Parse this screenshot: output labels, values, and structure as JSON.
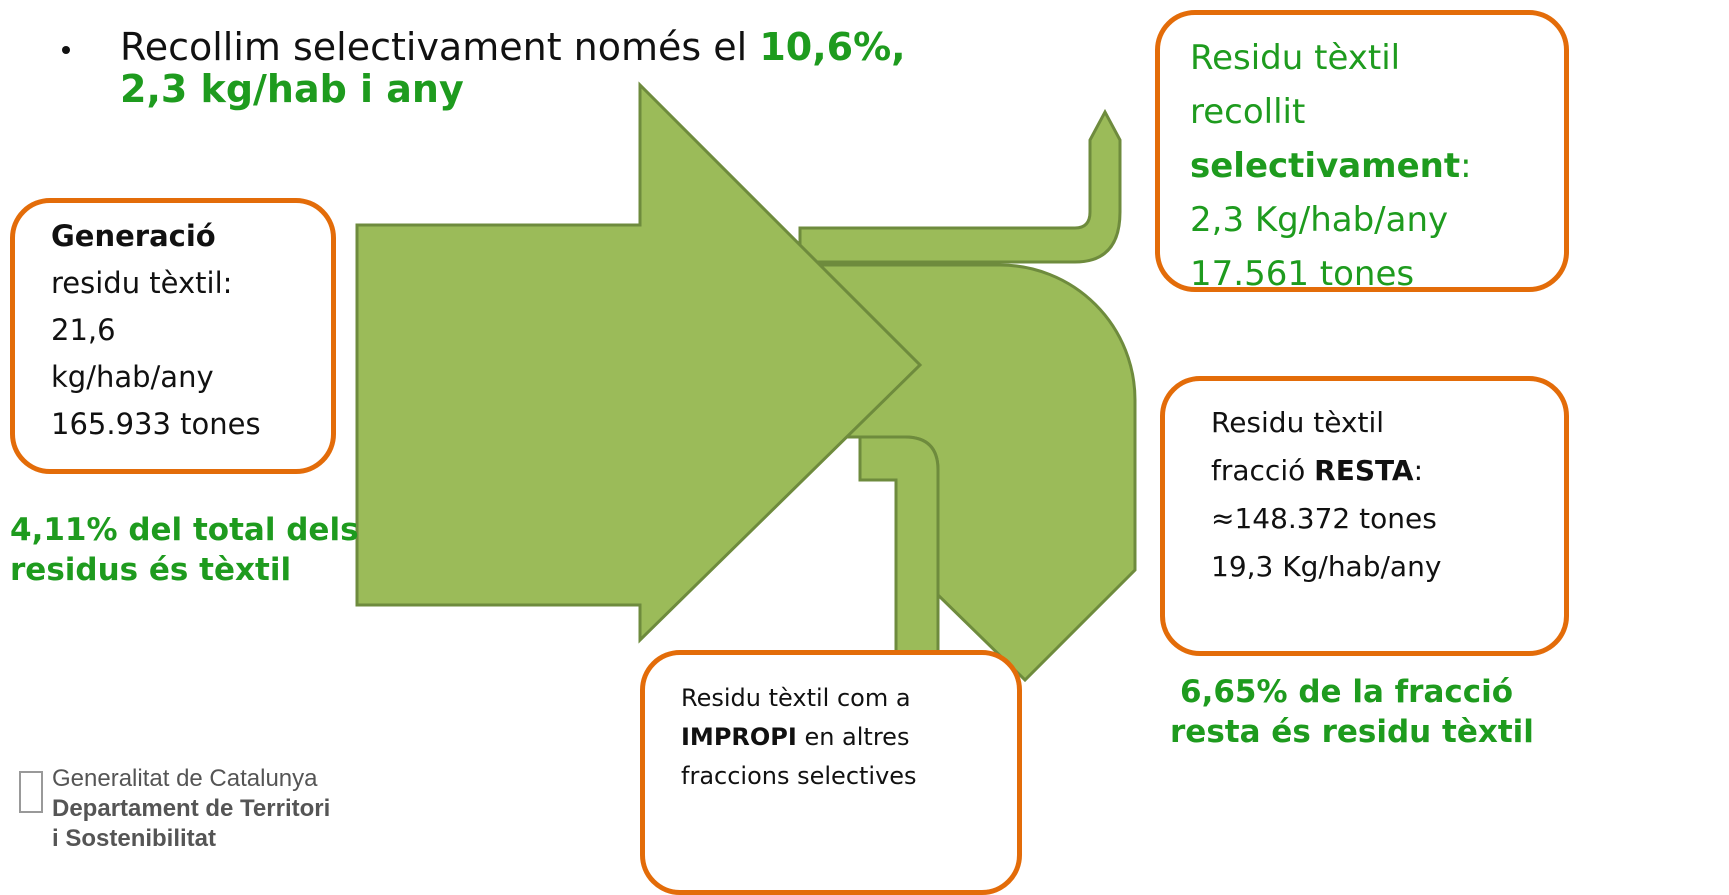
{
  "bullet": {
    "line1": "Recollim selectivament només el ",
    "line1_highlight": "10,6%,",
    "line2_highlight": "2,3 kg/hab i any"
  },
  "generation_box": {
    "title": "Generació",
    "lines": [
      "residu tèxtil:",
      "21,6",
      "kg/hab/any",
      "165.933 tones"
    ]
  },
  "generation_note": {
    "lines": [
      "4,11% del total dels",
      "residus és tèxtil"
    ]
  },
  "selective_box": {
    "lines": [
      "Residu tèxtil",
      "recollit"
    ],
    "bold": "selectivament",
    "bold_suffix": ":",
    "values": [
      "2,3 Kg/hab/any",
      "17.561 tones"
    ]
  },
  "rest_box": {
    "line1": "Residu tèxtil",
    "line2_prefix": "fracció ",
    "line2_bold": "RESTA",
    "line2_suffix": ":",
    "lines": [
      "≈148.372 tones",
      "19,3 Kg/hab/any"
    ]
  },
  "rest_note": {
    "lines": [
      "6,65% de la fracció",
      "resta és residu tèxtil"
    ]
  },
  "improper_box": {
    "line1": "Residu tèxtil com a",
    "line2_bold": "IMPROPI",
    "line2_suffix": " en altres",
    "line3": "fraccions selectives"
  },
  "logo": {
    "lines": [
      "Generalitat de Catalunya",
      "Departament de Territori",
      "i Sostenibilitat"
    ]
  }
}
